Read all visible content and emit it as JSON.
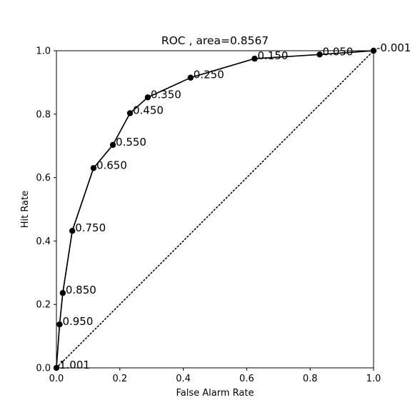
{
  "chart_data": {
    "type": "line",
    "title": "ROC , area=0.8567",
    "xlabel": "False Alarm Rate",
    "ylabel": "Hit Rate",
    "xlim": [
      0,
      1
    ],
    "ylim": [
      0,
      1
    ],
    "xticks": [
      "0.0",
      "0.2",
      "0.4",
      "0.6",
      "0.8",
      "1.0"
    ],
    "yticks": [
      "0.0",
      "0.2",
      "0.4",
      "0.6",
      "0.8",
      "1.0"
    ],
    "grid": false,
    "series": [
      {
        "style": "solid-with-markers",
        "x": [
          0.0,
          0.01,
          0.02,
          0.05,
          0.117,
          0.178,
          0.232,
          0.288,
          0.423,
          0.625,
          0.83,
          1.0
        ],
        "y": [
          0.0,
          0.137,
          0.236,
          0.432,
          0.63,
          0.703,
          0.803,
          0.853,
          0.915,
          0.975,
          0.988,
          1.0
        ],
        "labels": [
          "1.001",
          "0.950",
          "0.850",
          "0.750",
          "0.650",
          "0.550",
          "0.450",
          "0.350",
          "0.250",
          "0.150",
          "0.050",
          "-0.001"
        ]
      },
      {
        "style": "dotted",
        "x": [
          0,
          1
        ],
        "y": [
          0,
          1
        ]
      }
    ]
  }
}
